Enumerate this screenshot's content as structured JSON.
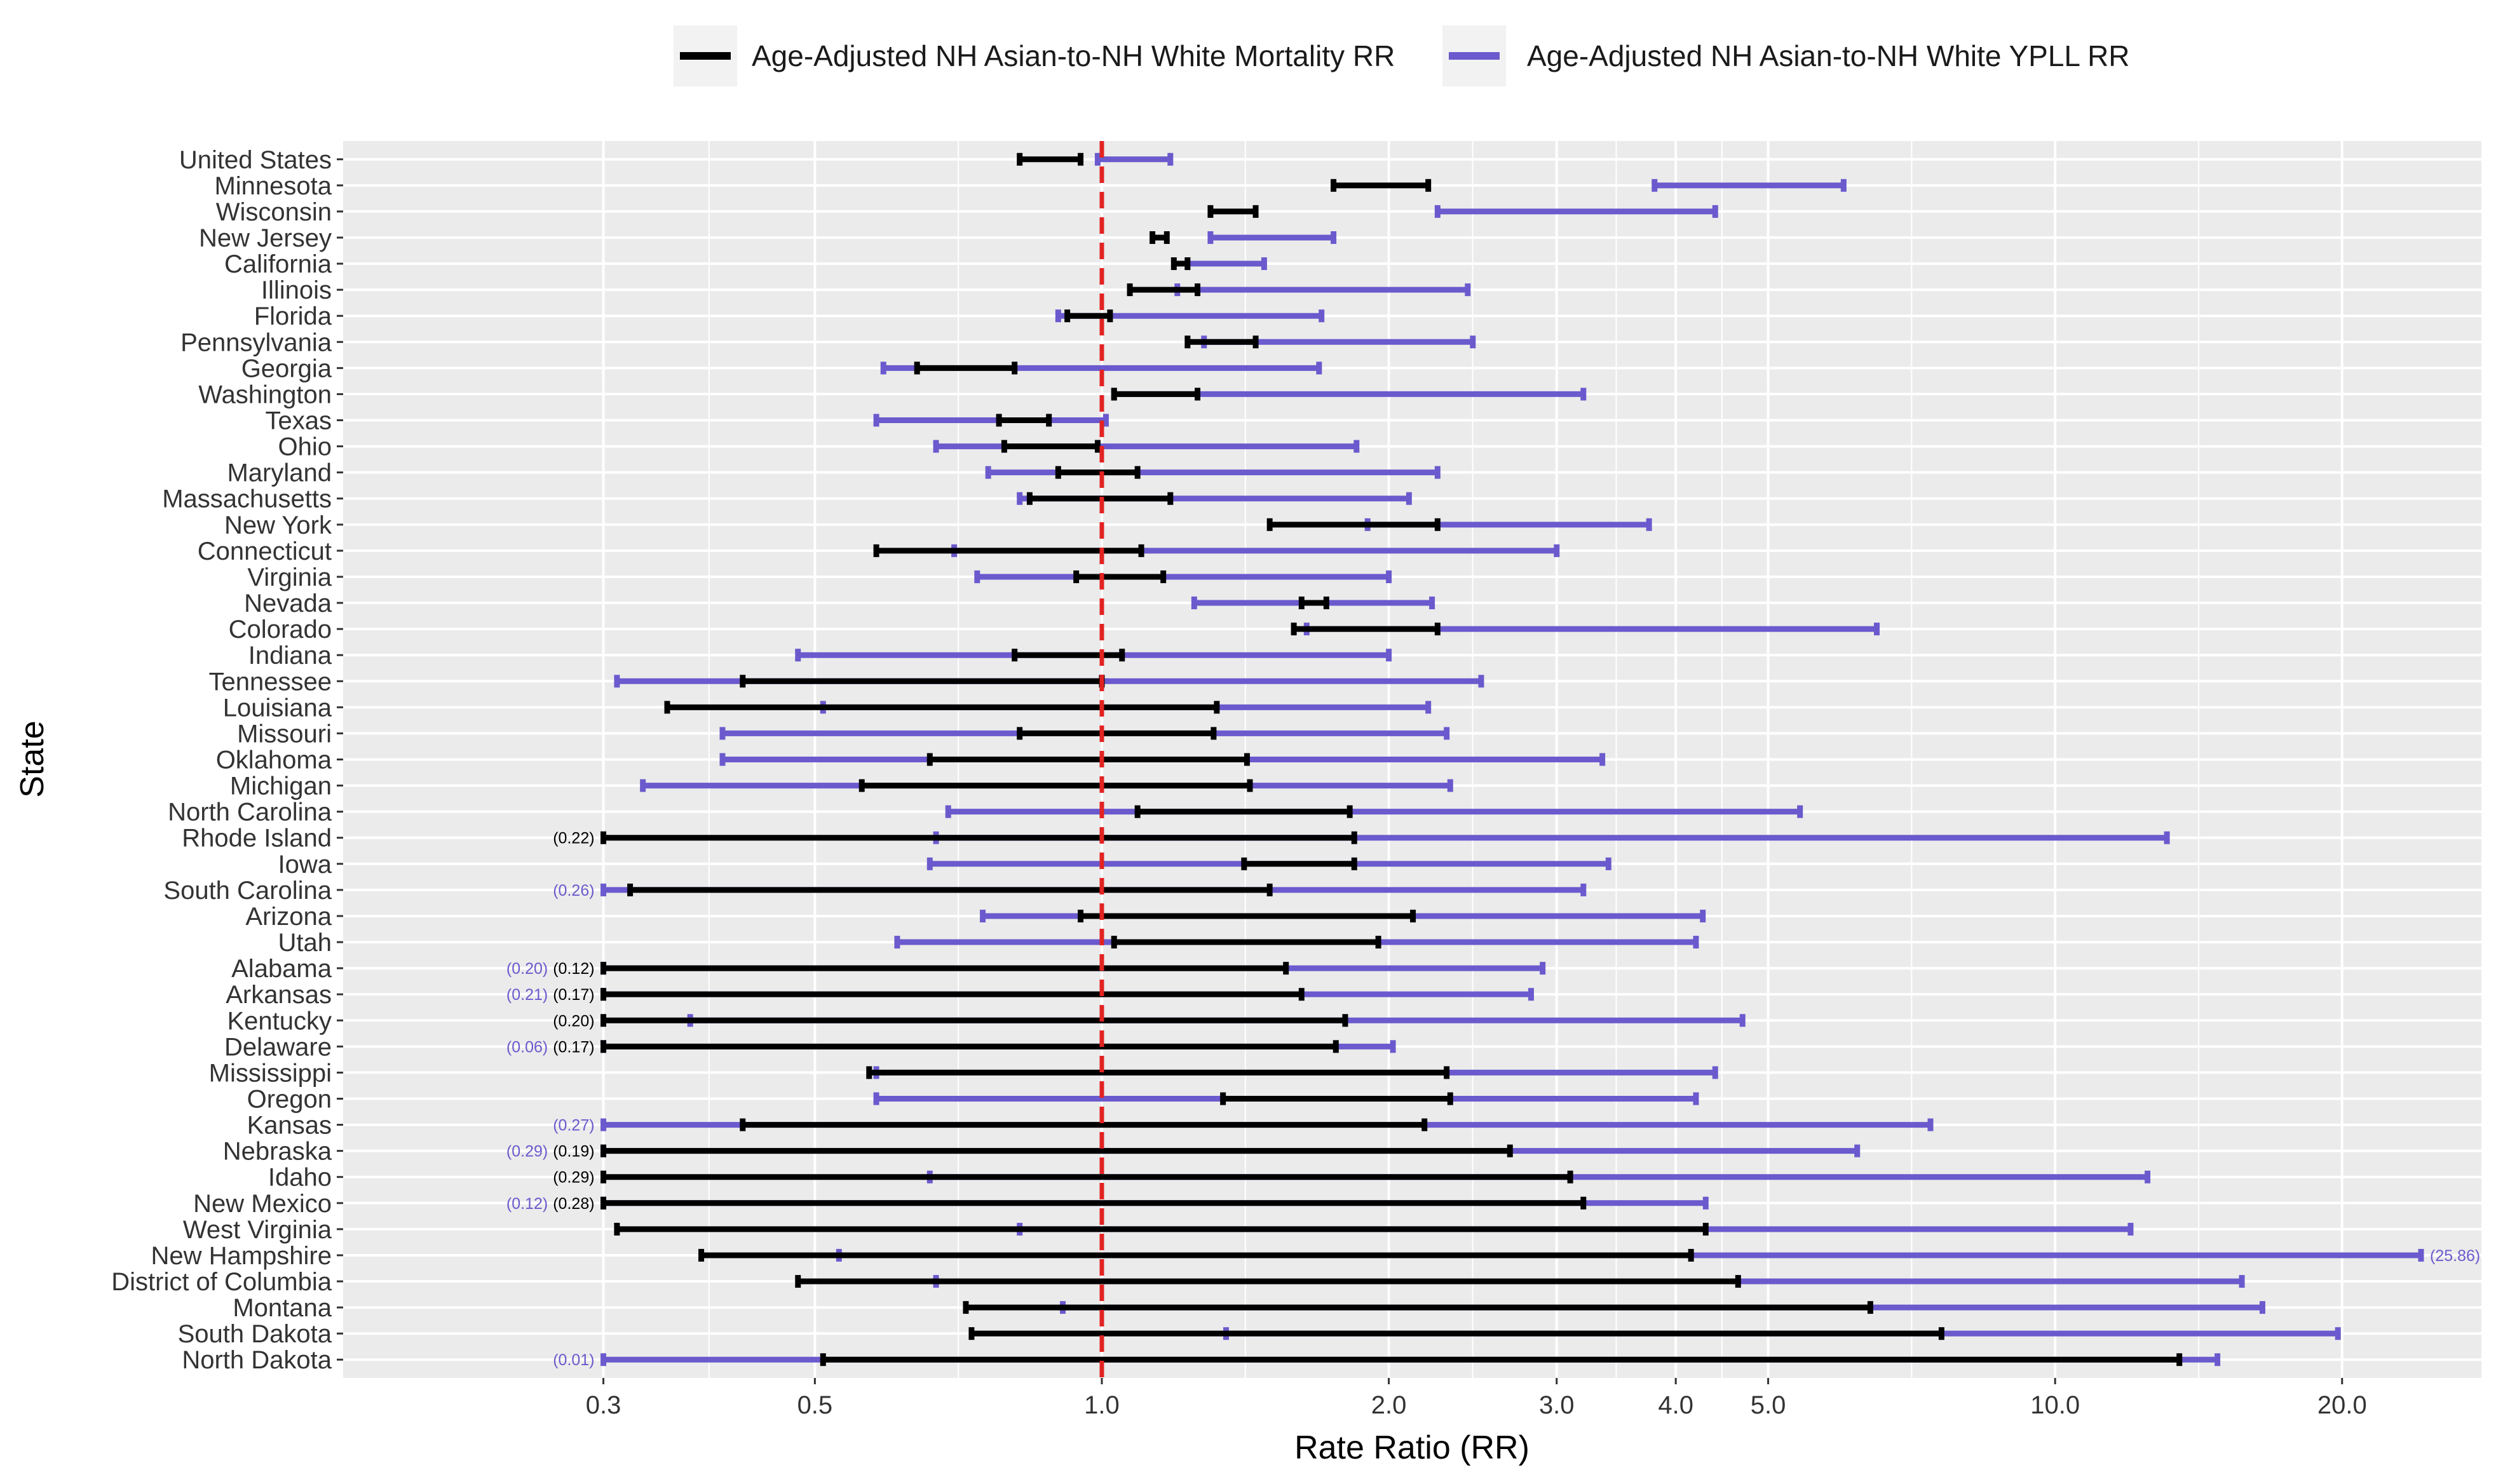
{
  "chart_data": {
    "type": "interval",
    "xlabel": "Rate Ratio (RR)",
    "ylabel": "State",
    "x_scale": "log",
    "xlim": [
      0.16,
      28
    ],
    "x_ticks": [
      {
        "value": 0.3,
        "label": "0.3"
      },
      {
        "value": 0.5,
        "label": "0.5"
      },
      {
        "value": 1.0,
        "label": "1.0"
      },
      {
        "value": 2.0,
        "label": "2.0"
      },
      {
        "value": 3.0,
        "label": "3.0"
      },
      {
        "value": 4.0,
        "label": "4.0"
      },
      {
        "value": 5.0,
        "label": "5.0"
      },
      {
        "value": 10.0,
        "label": "10.0"
      },
      {
        "value": 20.0,
        "label": "20.0"
      }
    ],
    "reference_line": 1.0,
    "legend": {
      "position": "top",
      "mortality": "Age-Adjusted NH Asian-to-NH White Mortality RR",
      "yll": "Age-Adjusted NH Asian-to-NH White YPLL RR"
    },
    "colors": {
      "mortality": "#000000",
      "yll": "#6a5acd",
      "reference": "#e32222",
      "panel": "#ebebeb",
      "grid": "#ffffff"
    },
    "rows": [
      {
        "state": "United States",
        "mort": [
          0.82,
          0.95
        ],
        "yll": [
          0.99,
          1.18
        ]
      },
      {
        "state": "Minnesota",
        "mort": [
          1.75,
          2.2
        ],
        "yll": [
          3.8,
          6.0
        ]
      },
      {
        "state": "Wisconsin",
        "mort": [
          1.3,
          1.45
        ],
        "yll": [
          2.25,
          4.4
        ]
      },
      {
        "state": "New Jersey",
        "mort": [
          1.13,
          1.17
        ],
        "yll": [
          1.3,
          1.75
        ]
      },
      {
        "state": "California",
        "mort": [
          1.19,
          1.23
        ],
        "yll": [
          1.23,
          1.48
        ]
      },
      {
        "state": "Illinois",
        "mort": [
          1.07,
          1.26
        ],
        "yll": [
          1.2,
          2.42
        ]
      },
      {
        "state": "Florida",
        "mort": [
          0.92,
          1.02
        ],
        "yll": [
          0.9,
          1.7
        ]
      },
      {
        "state": "Pennsylvania",
        "mort": [
          1.23,
          1.45
        ],
        "yll": [
          1.28,
          2.45
        ]
      },
      {
        "state": "Georgia",
        "mort": [
          0.64,
          0.81
        ],
        "yll": [
          0.59,
          1.69
        ]
      },
      {
        "state": "Washington",
        "mort": [
          1.03,
          1.26
        ],
        "yll": [
          1.03,
          3.2
        ]
      },
      {
        "state": "Texas",
        "mort": [
          0.78,
          0.88
        ],
        "yll": [
          0.58,
          1.01
        ]
      },
      {
        "state": "Ohio",
        "mort": [
          0.79,
          0.99
        ],
        "yll": [
          0.67,
          1.85
        ]
      },
      {
        "state": "Maryland",
        "mort": [
          0.9,
          1.09
        ],
        "yll": [
          0.76,
          2.25
        ]
      },
      {
        "state": "Massachusetts",
        "mort": [
          0.84,
          1.18
        ],
        "yll": [
          0.82,
          2.1
        ]
      },
      {
        "state": "New York",
        "mort": [
          1.5,
          2.25
        ],
        "yll": [
          1.9,
          3.75
        ]
      },
      {
        "state": "Connecticut",
        "mort": [
          0.58,
          1.1
        ],
        "yll": [
          0.7,
          3.0
        ]
      },
      {
        "state": "Virginia",
        "mort": [
          0.94,
          1.16
        ],
        "yll": [
          0.74,
          2.0
        ]
      },
      {
        "state": "Nevada",
        "mort": [
          1.62,
          1.72
        ],
        "yll": [
          1.25,
          2.22
        ]
      },
      {
        "state": "Colorado",
        "mort": [
          1.59,
          2.25
        ],
        "yll": [
          1.64,
          6.5
        ]
      },
      {
        "state": "Indiana",
        "mort": [
          0.81,
          1.05
        ],
        "yll": [
          0.48,
          2.0
        ]
      },
      {
        "state": "Tennessee",
        "mort": [
          0.42,
          1.0
        ],
        "yll": [
          0.31,
          2.5
        ]
      },
      {
        "state": "Louisiana",
        "mort": [
          0.35,
          1.32
        ],
        "yll": [
          0.51,
          2.2
        ]
      },
      {
        "state": "Missouri",
        "mort": [
          0.82,
          1.31
        ],
        "yll": [
          0.4,
          2.3
        ]
      },
      {
        "state": "Oklahoma",
        "mort": [
          0.66,
          1.42
        ],
        "yll": [
          0.4,
          3.35
        ]
      },
      {
        "state": "Michigan",
        "mort": [
          0.56,
          1.43
        ],
        "yll": [
          0.33,
          2.32
        ]
      },
      {
        "state": "North Carolina",
        "mort": [
          1.09,
          1.82
        ],
        "yll": [
          0.69,
          5.4
        ]
      },
      {
        "state": "Rhode Island",
        "mort": [
          0.22,
          1.84
        ],
        "yll": [
          0.67,
          13.1
        ],
        "mort_label": "(0.22)"
      },
      {
        "state": "Iowa",
        "mort": [
          1.41,
          1.84
        ],
        "yll": [
          0.66,
          3.4
        ]
      },
      {
        "state": "South Carolina",
        "mort": [
          0.32,
          1.5
        ],
        "yll": [
          0.26,
          3.2
        ],
        "yll_label": "(0.26)"
      },
      {
        "state": "Arizona",
        "mort": [
          0.95,
          2.12
        ],
        "yll": [
          0.75,
          4.27
        ]
      },
      {
        "state": "Utah",
        "mort": [
          1.03,
          1.95
        ],
        "yll": [
          0.61,
          4.2
        ]
      },
      {
        "state": "Alabama",
        "mort": [
          0.12,
          1.56
        ],
        "yll": [
          0.2,
          2.9
        ],
        "mort_label": "(0.12)",
        "yll_label": "(0.20)"
      },
      {
        "state": "Arkansas",
        "mort": [
          0.17,
          1.62
        ],
        "yll": [
          0.21,
          2.82
        ],
        "mort_label": "(0.17)",
        "yll_label": "(0.21)"
      },
      {
        "state": "Kentucky",
        "mort": [
          0.2,
          1.8
        ],
        "yll": [
          0.37,
          4.7
        ],
        "mort_label": "(0.20)"
      },
      {
        "state": "Delaware",
        "mort": [
          0.17,
          1.76
        ],
        "yll": [
          0.06,
          2.02
        ],
        "mort_label": "(0.17)",
        "yll_label": "(0.06)"
      },
      {
        "state": "Mississippi",
        "mort": [
          0.57,
          2.3
        ],
        "yll": [
          0.58,
          4.4
        ]
      },
      {
        "state": "Oregon",
        "mort": [
          1.34,
          2.32
        ],
        "yll": [
          0.58,
          4.2
        ]
      },
      {
        "state": "Kansas",
        "mort": [
          0.42,
          2.18
        ],
        "yll": [
          0.27,
          7.4
        ],
        "yll_label": "(0.27)"
      },
      {
        "state": "Nebraska",
        "mort": [
          0.19,
          2.68
        ],
        "yll": [
          0.29,
          6.2
        ],
        "mort_label": "(0.19)",
        "yll_label": "(0.29)"
      },
      {
        "state": "Idaho",
        "mort": [
          0.29,
          3.1
        ],
        "yll": [
          0.66,
          12.5
        ],
        "mort_label": "(0.29)"
      },
      {
        "state": "New Mexico",
        "mort": [
          0.28,
          3.2
        ],
        "yll": [
          0.12,
          4.3
        ],
        "mort_label": "(0.28)",
        "yll_label": "(0.12)"
      },
      {
        "state": "West Virginia",
        "mort": [
          0.31,
          4.3
        ],
        "yll": [
          0.82,
          12.0
        ]
      },
      {
        "state": "New Hampshire",
        "mort": [
          0.38,
          4.15
        ],
        "yll": [
          0.53,
          25.86
        ],
        "yll_label": "(25.86)"
      },
      {
        "state": "District of Columbia",
        "mort": [
          0.48,
          4.65
        ],
        "yll": [
          0.67,
          15.7
        ]
      },
      {
        "state": "Montana",
        "mort": [
          0.72,
          6.4
        ],
        "yll": [
          0.91,
          16.5
        ]
      },
      {
        "state": "South Dakota",
        "mort": [
          0.73,
          7.6
        ],
        "yll": [
          1.35,
          19.8
        ]
      },
      {
        "state": "North Dakota",
        "mort": [
          0.51,
          13.5
        ],
        "yll": [
          0.01,
          14.8
        ],
        "yll_label": "(0.01)"
      }
    ]
  }
}
